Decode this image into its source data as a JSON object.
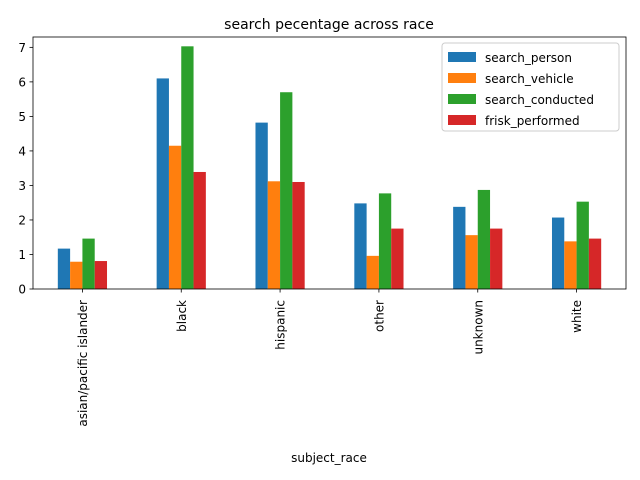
{
  "chart_data": {
    "type": "bar",
    "title": "search pecentage across race",
    "xlabel": "subject_race",
    "ylabel": "",
    "categories": [
      "asian/pacific islander",
      "black",
      "hispanic",
      "other",
      "unknown",
      "white"
    ],
    "yticks": [
      "0",
      "1",
      "2",
      "3",
      "4",
      "5",
      "6",
      "7"
    ],
    "ylim": [
      0,
      7.3
    ],
    "legend_position": "top-right",
    "series": [
      {
        "name": "search_person",
        "color": "#1f77b4",
        "values": [
          1.17,
          6.1,
          4.82,
          2.48,
          2.38,
          2.07
        ]
      },
      {
        "name": "search_vehicle",
        "color": "#ff7f0e",
        "values": [
          0.79,
          4.15,
          3.12,
          0.96,
          1.56,
          1.38
        ]
      },
      {
        "name": "search_conducted",
        "color": "#2ca02c",
        "values": [
          1.46,
          7.03,
          5.7,
          2.77,
          2.87,
          2.53
        ]
      },
      {
        "name": "frisk_performed",
        "color": "#d62728",
        "values": [
          0.81,
          3.39,
          3.1,
          1.75,
          1.75,
          1.46
        ]
      }
    ]
  }
}
